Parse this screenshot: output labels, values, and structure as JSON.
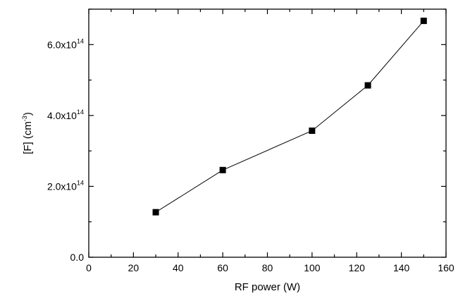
{
  "chart_data": {
    "type": "line",
    "xlabel": "RF power (W)",
    "ylabel": {
      "main": "[F] (cm",
      "sup": "-3",
      "close": ")"
    },
    "xlim": [
      0,
      160
    ],
    "ylim": [
      0,
      700000000000000.0
    ],
    "x_ticks": [
      {
        "value": 0,
        "label": "0"
      },
      {
        "value": 20,
        "label": "20"
      },
      {
        "value": 40,
        "label": "40"
      },
      {
        "value": 60,
        "label": "60"
      },
      {
        "value": 80,
        "label": "80"
      },
      {
        "value": 100,
        "label": "100"
      },
      {
        "value": 120,
        "label": "120"
      },
      {
        "value": 140,
        "label": "140"
      },
      {
        "value": 160,
        "label": "160"
      }
    ],
    "y_ticks": [
      {
        "value": 0,
        "mant": "0.0",
        "sup": ""
      },
      {
        "value": 200000000000000.0,
        "mant": "2.0x10",
        "sup": "14"
      },
      {
        "value": 400000000000000.0,
        "mant": "4.0x10",
        "sup": "14"
      },
      {
        "value": 600000000000000.0,
        "mant": "6.0x10",
        "sup": "14"
      }
    ],
    "series": [
      {
        "x": [
          30,
          60,
          100,
          125,
          150
        ],
        "y": [
          127000000000000.0,
          246000000000000.0,
          357000000000000.0,
          485000000000000.0,
          667000000000000.0
        ],
        "marker": "square",
        "color": "#000000"
      }
    ],
    "grid": false,
    "legend": "none"
  }
}
